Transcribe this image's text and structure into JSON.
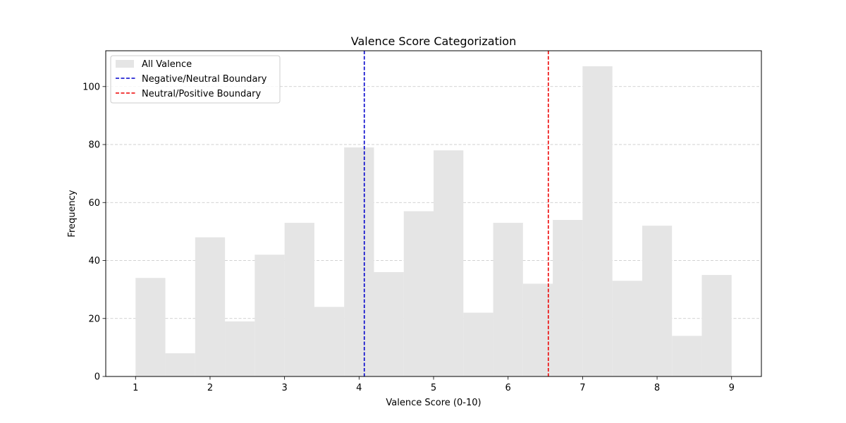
{
  "chart_data": {
    "type": "bar",
    "title": "Valence Score Categorization",
    "xlabel": "Valence Score (0-10)",
    "ylabel": "Frequency",
    "xlim": [
      0.6,
      9.4
    ],
    "ylim": [
      0,
      112.35
    ],
    "xticks": [
      1,
      2,
      3,
      4,
      5,
      6,
      7,
      8,
      9
    ],
    "yticks": [
      0,
      20,
      40,
      60,
      80,
      100
    ],
    "grid": "y-dashed",
    "legend_position": "upper-left",
    "histogram": {
      "name": "All Valence",
      "color": "#e5e5e5",
      "bin_start": 1.0,
      "bin_width": 0.4,
      "counts": [
        34,
        8,
        48,
        19,
        42,
        53,
        24,
        79,
        36,
        57,
        78,
        22,
        53,
        32,
        54,
        107,
        33,
        52,
        14,
        35
      ]
    },
    "boundaries": [
      {
        "name": "Negative/Neutral Boundary",
        "x": 4.07,
        "color": "#0000cc"
      },
      {
        "name": "Neutral/Positive Boundary",
        "x": 6.54,
        "color": "#ee0000"
      }
    ]
  }
}
